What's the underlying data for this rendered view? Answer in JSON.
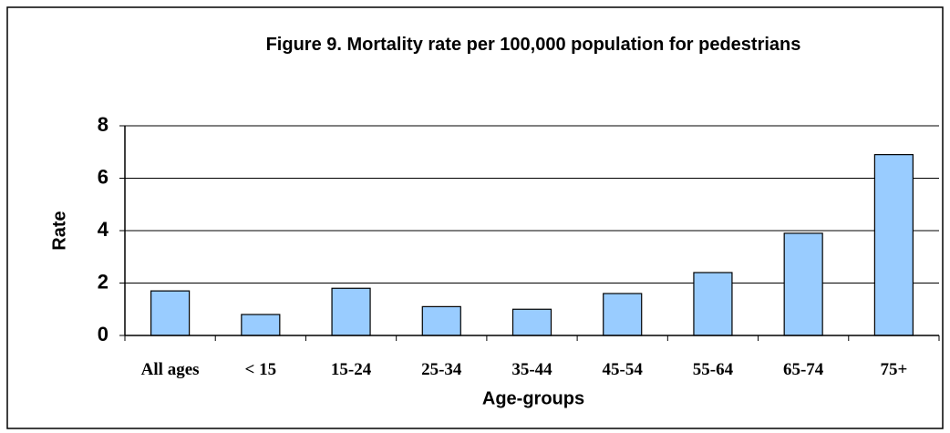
{
  "chart_data": {
    "type": "bar",
    "title": "Figure 9. Mortality rate per 100,000 population for pedestrians",
    "x_label": "Age-groups",
    "y_label": "Rate",
    "categories": [
      "All ages",
      "< 15",
      "15-24",
      "25-34",
      "35-44",
      "45-54",
      "55-64",
      "65-74",
      "75+"
    ],
    "values": [
      1.7,
      0.8,
      1.8,
      1.1,
      1.0,
      1.6,
      2.4,
      3.9,
      6.9
    ],
    "color": "#99ccff",
    "ylim": [
      0,
      8
    ],
    "yticks": [
      0,
      2,
      4,
      6,
      8
    ],
    "grid": true
  }
}
